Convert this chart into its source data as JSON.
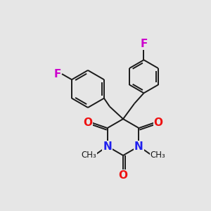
{
  "bg_color": "#e6e6e6",
  "bond_color": "#1a1a1a",
  "bond_width": 1.4,
  "N_color": "#2020ee",
  "O_color": "#ee1010",
  "F_color": "#cc00cc",
  "figsize": [
    3.0,
    3.0
  ],
  "dpi": 100,
  "xlim": [
    0,
    10
  ],
  "ylim": [
    0,
    10
  ]
}
